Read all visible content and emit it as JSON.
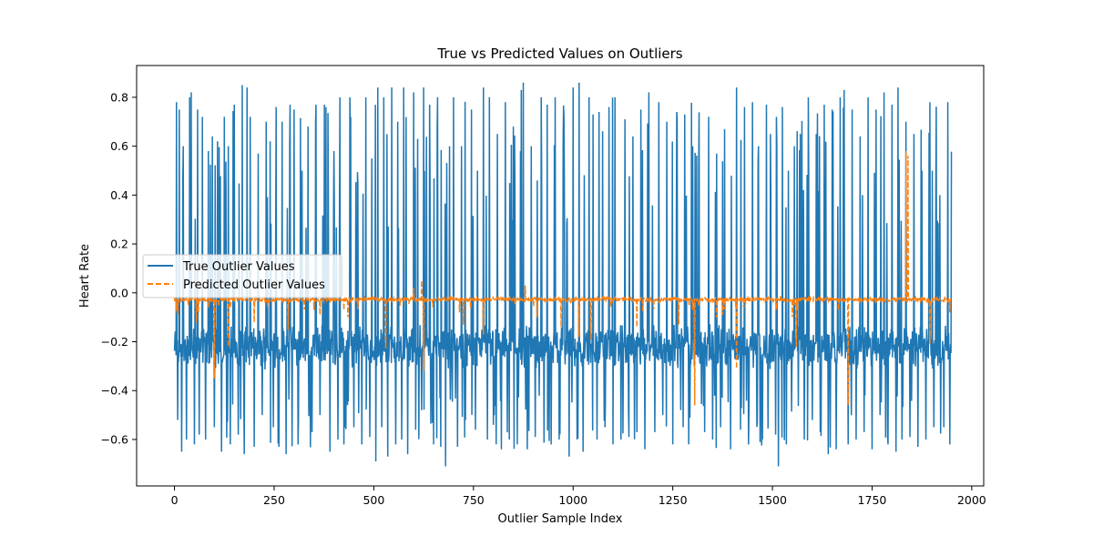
{
  "chart_data": {
    "type": "line",
    "title": "True vs Predicted Values on Outliers",
    "xlabel": "Outlier Sample Index",
    "ylabel": "Heart Rate",
    "xlim": [
      -95,
      2030
    ],
    "ylim": [
      -0.79,
      0.93
    ],
    "xticks": [
      0,
      250,
      500,
      750,
      1000,
      1250,
      1500,
      1750,
      2000
    ],
    "yticks": [
      -0.6,
      -0.4,
      -0.2,
      0.0,
      0.2,
      0.4,
      0.6,
      0.8
    ],
    "xtick_labels": [
      "0",
      "250",
      "500",
      "750",
      "1000",
      "1250",
      "1500",
      "1750",
      "2000"
    ],
    "ytick_labels": [
      "−0.6",
      "−0.4",
      "−0.2",
      "0.0",
      "0.2",
      "0.4",
      "0.6",
      "0.8"
    ],
    "grid": false,
    "legend_position": "center-left",
    "n_points": 1950,
    "series": [
      {
        "name": "True Outlier Values",
        "color": "#1f77b4",
        "style": "solid",
        "baseline": -0.22,
        "value_range": [
          -0.71,
          0.86
        ],
        "spikes": [
          [
            5,
            0.78
          ],
          [
            8,
            -0.52
          ],
          [
            12,
            0.75
          ],
          [
            18,
            -0.65
          ],
          [
            22,
            0.6
          ],
          [
            30,
            -0.6
          ],
          [
            38,
            0.8
          ],
          [
            42,
            0.82
          ],
          [
            50,
            -0.62
          ],
          [
            58,
            0.75
          ],
          [
            62,
            -0.58
          ],
          [
            70,
            0.72
          ],
          [
            78,
            -0.6
          ],
          [
            85,
            0.58
          ],
          [
            95,
            0.64
          ],
          [
            100,
            -0.55
          ],
          [
            108,
            0.62
          ],
          [
            118,
            -0.65
          ],
          [
            125,
            0.72
          ],
          [
            135,
            0.6
          ],
          [
            140,
            -0.62
          ],
          [
            150,
            0.77
          ],
          [
            160,
            -0.58
          ],
          [
            170,
            0.85
          ],
          [
            175,
            -0.66
          ],
          [
            182,
            0.84
          ],
          [
            190,
            0.72
          ],
          [
            200,
            -0.63
          ],
          [
            210,
            0.57
          ],
          [
            220,
            -0.5
          ],
          [
            230,
            0.7
          ],
          [
            240,
            0.62
          ],
          [
            248,
            -0.55
          ],
          [
            255,
            0.76
          ],
          [
            262,
            -0.63
          ],
          [
            270,
            0.7
          ],
          [
            280,
            -0.66
          ],
          [
            290,
            0.77
          ],
          [
            300,
            0.75
          ],
          [
            310,
            -0.62
          ],
          [
            320,
            0.5
          ],
          [
            335,
            0.68
          ],
          [
            345,
            -0.57
          ],
          [
            355,
            0.77
          ],
          [
            365,
            -0.5
          ],
          [
            380,
            0.76
          ],
          [
            390,
            -0.65
          ],
          [
            400,
            0.58
          ],
          [
            410,
            -0.6
          ],
          [
            415,
            0.8
          ],
          [
            425,
            -0.62
          ],
          [
            440,
            0.8
          ],
          [
            450,
            -0.55
          ],
          [
            460,
            0.45
          ],
          [
            470,
            -0.62
          ],
          [
            480,
            0.8
          ],
          [
            490,
            -0.59
          ],
          [
            495,
            0.55
          ],
          [
            505,
            -0.69
          ],
          [
            510,
            0.84
          ],
          [
            520,
            -0.55
          ],
          [
            525,
            0.8
          ],
          [
            535,
            -0.67
          ],
          [
            545,
            0.84
          ],
          [
            555,
            -0.62
          ],
          [
            560,
            0.7
          ],
          [
            570,
            -0.6
          ],
          [
            575,
            0.84
          ],
          [
            585,
            -0.66
          ],
          [
            600,
            0.82
          ],
          [
            605,
            -0.56
          ],
          [
            610,
            0.63
          ],
          [
            620,
            -0.48
          ],
          [
            625,
            0.84
          ],
          [
            640,
            0.77
          ],
          [
            650,
            -0.62
          ],
          [
            660,
            0.8
          ],
          [
            668,
            -0.63
          ],
          [
            680,
            -0.71
          ],
          [
            690,
            0.6
          ],
          [
            700,
            0.8
          ],
          [
            710,
            -0.63
          ],
          [
            720,
            0.6
          ],
          [
            730,
            -0.52
          ],
          [
            745,
            0.75
          ],
          [
            755,
            -0.56
          ],
          [
            760,
            0.5
          ],
          [
            775,
            0.84
          ],
          [
            785,
            -0.6
          ],
          [
            790,
            0.8
          ],
          [
            800,
            -0.54
          ],
          [
            810,
            0.65
          ],
          [
            820,
            -0.64
          ],
          [
            830,
            0.78
          ],
          [
            840,
            -0.6
          ],
          [
            850,
            0.68
          ],
          [
            860,
            -0.62
          ],
          [
            870,
            0.83
          ],
          [
            875,
            0.86
          ],
          [
            885,
            -0.64
          ],
          [
            895,
            0.6
          ],
          [
            905,
            -0.59
          ],
          [
            920,
            0.8
          ],
          [
            935,
            0.77
          ],
          [
            945,
            -0.62
          ],
          [
            955,
            0.8
          ],
          [
            965,
            -0.6
          ],
          [
            975,
            0.62
          ],
          [
            990,
            -0.67
          ],
          [
            1000,
            0.84
          ],
          [
            1010,
            -0.6
          ],
          [
            1015,
            0.86
          ],
          [
            1025,
            -0.65
          ],
          [
            1040,
            0.8
          ],
          [
            1050,
            0.73
          ],
          [
            1060,
            -0.6
          ],
          [
            1065,
            0.74
          ],
          [
            1080,
            -0.55
          ],
          [
            1090,
            0.76
          ],
          [
            1100,
            -0.62
          ],
          [
            1105,
            0.8
          ],
          [
            1120,
            -0.6
          ],
          [
            1130,
            0.71
          ],
          [
            1140,
            -0.59
          ],
          [
            1150,
            0.64
          ],
          [
            1160,
            -0.57
          ],
          [
            1170,
            0.75
          ],
          [
            1180,
            -0.64
          ],
          [
            1190,
            0.82
          ],
          [
            1205,
            -0.57
          ],
          [
            1215,
            0.78
          ],
          [
            1225,
            -0.5
          ],
          [
            1235,
            0.7
          ],
          [
            1250,
            -0.62
          ],
          [
            1260,
            0.74
          ],
          [
            1270,
            -0.48
          ],
          [
            1280,
            0.73
          ],
          [
            1290,
            -0.62
          ],
          [
            1300,
            0.6
          ],
          [
            1315,
            0.5
          ],
          [
            1330,
            -0.57
          ],
          [
            1340,
            0.72
          ],
          [
            1350,
            -0.6
          ],
          [
            1360,
            0.57
          ],
          [
            1370,
            -0.55
          ],
          [
            1380,
            0.67
          ],
          [
            1395,
            -0.64
          ],
          [
            1410,
            0.84
          ],
          [
            1420,
            -0.56
          ],
          [
            1430,
            0.76
          ],
          [
            1440,
            -0.62
          ],
          [
            1450,
            0.78
          ],
          [
            1465,
            0.6
          ],
          [
            1475,
            -0.6
          ],
          [
            1485,
            0.77
          ],
          [
            1495,
            0.65
          ],
          [
            1510,
            0.72
          ],
          [
            1515,
            -0.71
          ],
          [
            1525,
            0.76
          ],
          [
            1535,
            -0.62
          ],
          [
            1540,
            0.5
          ],
          [
            1555,
            0.6
          ],
          [
            1570,
            0.65
          ],
          [
            1580,
            -0.6
          ],
          [
            1590,
            0.8
          ],
          [
            1600,
            -0.52
          ],
          [
            1610,
            0.65
          ],
          [
            1620,
            -0.57
          ],
          [
            1630,
            0.77
          ],
          [
            1640,
            -0.66
          ],
          [
            1650,
            0.75
          ],
          [
            1660,
            -0.64
          ],
          [
            1670,
            0.8
          ],
          [
            1680,
            0.83
          ],
          [
            1690,
            -0.62
          ],
          [
            1700,
            0.75
          ],
          [
            1710,
            -0.6
          ],
          [
            1720,
            0.64
          ],
          [
            1730,
            -0.57
          ],
          [
            1740,
            0.8
          ],
          [
            1750,
            -0.64
          ],
          [
            1760,
            0.75
          ],
          [
            1770,
            -0.5
          ],
          [
            1780,
            0.82
          ],
          [
            1790,
            -0.62
          ],
          [
            1800,
            0.77
          ],
          [
            1810,
            -0.65
          ],
          [
            1815,
            0.84
          ],
          [
            1825,
            -0.6
          ],
          [
            1835,
            0.7
          ],
          [
            1845,
            -0.59
          ],
          [
            1855,
            0.65
          ],
          [
            1865,
            -0.63
          ],
          [
            1875,
            0.5
          ],
          [
            1885,
            -0.6
          ],
          [
            1895,
            0.78
          ],
          [
            1905,
            -0.55
          ],
          [
            1910,
            0.45
          ],
          [
            1920,
            0.4
          ],
          [
            1930,
            -0.55
          ],
          [
            1940,
            0.78
          ],
          [
            1945,
            -0.62
          ]
        ]
      },
      {
        "name": "Predicted Outlier Values",
        "color": "#ff7f0e",
        "style": "dashed",
        "baseline": -0.027,
        "value_range": [
          -0.46,
          0.58
        ],
        "spikes": [
          [
            8,
            -0.09
          ],
          [
            35,
            -0.05
          ],
          [
            55,
            -0.12
          ],
          [
            60,
            -0.08
          ],
          [
            100,
            -0.35
          ],
          [
            135,
            -0.22
          ],
          [
            200,
            -0.12
          ],
          [
            285,
            -0.15
          ],
          [
            350,
            -0.07
          ],
          [
            365,
            -0.09
          ],
          [
            425,
            -0.07
          ],
          [
            435,
            -0.1
          ],
          [
            530,
            -0.23
          ],
          [
            600,
            0.02
          ],
          [
            605,
            -0.04
          ],
          [
            620,
            0.05
          ],
          [
            625,
            -0.32
          ],
          [
            715,
            -0.08
          ],
          [
            725,
            -0.13
          ],
          [
            775,
            -0.17
          ],
          [
            880,
            0.03
          ],
          [
            910,
            -0.1
          ],
          [
            970,
            -0.14
          ],
          [
            1015,
            -0.18
          ],
          [
            1045,
            -0.19
          ],
          [
            1160,
            -0.14
          ],
          [
            1265,
            -0.13
          ],
          [
            1300,
            -0.07
          ],
          [
            1305,
            -0.46
          ],
          [
            1360,
            -0.1
          ],
          [
            1375,
            -0.09
          ],
          [
            1410,
            -0.31
          ],
          [
            1510,
            -0.07
          ],
          [
            1520,
            -0.01
          ],
          [
            1550,
            -0.1
          ],
          [
            1560,
            -0.22
          ],
          [
            1690,
            -0.46
          ],
          [
            1835,
            0.58
          ],
          [
            1840,
            0.56
          ],
          [
            1895,
            -0.21
          ],
          [
            1945,
            -0.08
          ]
        ]
      }
    ]
  }
}
